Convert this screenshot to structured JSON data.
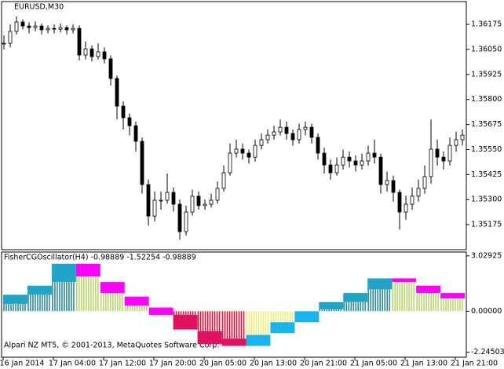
{
  "chart_data": [
    {
      "type": "candlestick",
      "title": "EURUSD,M30",
      "close": [
        1.36081,
        1.3614,
        1.36187,
        1.36167,
        1.36159,
        1.36167,
        1.36148,
        1.36155,
        1.36151,
        1.36159,
        1.36148,
        1.36155,
        1.36022,
        1.36053,
        1.36014,
        1.36038,
        1.36003,
        1.35905,
        1.35767,
        1.35709,
        1.35669,
        1.35591,
        1.35375,
        1.35218,
        1.35297,
        1.35297,
        1.35336,
        1.35277,
        1.3514,
        1.35238,
        1.35317,
        1.3527,
        1.35277,
        1.35297,
        1.35356,
        1.35434,
        1.35532,
        1.35552,
        1.35532,
        1.35512,
        1.35571,
        1.35599,
        1.35622,
        1.35638,
        1.35661,
        1.3563,
        1.35599,
        1.3565,
        1.35661,
        1.35611,
        1.35532,
        1.35473,
        1.35434,
        1.35473,
        1.35512,
        1.35493,
        1.35473,
        1.35493,
        1.35532,
        1.35512,
        1.35375,
        1.35395,
        1.35336,
        1.35238,
        1.35277,
        1.35317,
        1.35356,
        1.35415,
        1.35552,
        1.35512,
        1.35493,
        1.35571,
        1.35599,
        1.35622
      ],
      "high": [
        1.3612,
        1.36175,
        1.36215,
        1.362,
        1.36185,
        1.3619,
        1.3618,
        1.3617,
        1.36175,
        1.3618,
        1.3617,
        1.36175,
        1.3617,
        1.3609,
        1.3607,
        1.3608,
        1.3606,
        1.3602,
        1.3592,
        1.3579,
        1.3573,
        1.3569,
        1.3561,
        1.354,
        1.3534,
        1.3534,
        1.3543,
        1.3536,
        1.353,
        1.3527,
        1.3535,
        1.3534,
        1.353,
        1.3533,
        1.3539,
        1.3547,
        1.3558,
        1.356,
        1.3558,
        1.3555,
        1.356,
        1.3563,
        1.3565,
        1.3567,
        1.357,
        1.3569,
        1.3565,
        1.3568,
        1.3569,
        1.3568,
        1.3563,
        1.3556,
        1.355,
        1.3551,
        1.3555,
        1.3554,
        1.3552,
        1.3553,
        1.3557,
        1.356,
        1.3553,
        1.3544,
        1.3542,
        1.3535,
        1.3532,
        1.3536,
        1.354,
        1.3547,
        1.357,
        1.356,
        1.3554,
        1.3561,
        1.3564,
        1.3565
      ],
      "low": [
        1.3605,
        1.3606,
        1.36125,
        1.3615,
        1.3613,
        1.3614,
        1.36125,
        1.3613,
        1.3613,
        1.36135,
        1.36125,
        1.3613,
        1.35995,
        1.36,
        1.3599,
        1.36,
        1.3598,
        1.3587,
        1.357,
        1.3565,
        1.3562,
        1.3554,
        1.3533,
        1.3517,
        1.3519,
        1.3525,
        1.3528,
        1.3524,
        1.351,
        1.3512,
        1.3522,
        1.3525,
        1.3525,
        1.3526,
        1.3528,
        1.3534,
        1.3542,
        1.3551,
        1.355,
        1.3548,
        1.3549,
        1.3555,
        1.3558,
        1.356,
        1.3562,
        1.356,
        1.3557,
        1.3558,
        1.3562,
        1.3558,
        1.355,
        1.3543,
        1.354,
        1.3542,
        1.3545,
        1.3546,
        1.3544,
        1.3545,
        1.3547,
        1.3548,
        1.3533,
        1.3534,
        1.3529,
        1.3515,
        1.352,
        1.3525,
        1.3529,
        1.3533,
        1.3538,
        1.3547,
        1.3545,
        1.3547,
        1.3554,
        1.3557
      ],
      "ylim": [
        1.3505,
        1.36289
      ],
      "yticks": [
        {
          "value": 1.36175,
          "label": "1.36175"
        },
        {
          "value": 1.3605,
          "label": "1.36050"
        },
        {
          "value": 1.35925,
          "label": "1.35925"
        },
        {
          "value": 1.358,
          "label": "1.35800"
        },
        {
          "value": 1.35675,
          "label": "1.35675"
        },
        {
          "value": 1.3555,
          "label": "1.35550"
        },
        {
          "value": 1.35425,
          "label": "1.35425"
        },
        {
          "value": 1.353,
          "label": "1.35300"
        },
        {
          "value": 1.35175,
          "label": "1.35175"
        }
      ],
      "color": "#000000",
      "time_labels": [
        "16 Jan 2014",
        "17 Jan 04:00",
        "17 Jan 12:00",
        "17 Jan 20:00",
        "20 Jan 05:00",
        "20 Jan 13:00",
        "20 Jan 21:00",
        "21 Jan 05:00",
        "21 Jan 13:00",
        "21 Jan 21:00"
      ]
    },
    {
      "type": "step-band",
      "title": "FisherCGOscillator(H4) -0.98889 -1.52254 -0.98889",
      "series": [
        {
          "values": [
            0.9,
            1.4,
            2.6,
            2.6,
            1.6,
            0.8,
            0.2,
            -0.2,
            -1.1,
            -1.5,
            -1.3,
            -0.6,
            0.0,
            0.5,
            1.0,
            1.8,
            1.8,
            1.4,
            1.0
          ]
        },
        {
          "values": [
            0.4,
            0.9,
            1.6,
            1.9,
            1.0,
            0.3,
            -0.2,
            -1.0,
            -1.8,
            -1.9,
            -1.9,
            -1.2,
            -0.6,
            0.1,
            0.5,
            1.2,
            1.6,
            1.0,
            0.7
          ]
        }
      ],
      "band_colors": [
        "#1ea5c8",
        "#1ea5c8",
        "#1ea5c8",
        "#ff00ff",
        "#ff00ff",
        "#ff00ff",
        "#ff00ff",
        "#e0115f",
        "#e0115f",
        "#e0115f",
        "#19b4ee",
        "#19b4ee",
        "#19b4ee",
        "#1ea5c8",
        "#1ea5c8",
        "#1ea5c8",
        "#ff00ff",
        "#ff00ff",
        "#ff00ff"
      ],
      "hist_colors": [
        "#2b8c9c",
        "#2b8c9c",
        "#2b8c9c",
        "#b9d86c",
        "#b9d86c",
        "#b9d86c",
        "#dc143c",
        "#dc143c",
        "#dc143c",
        "#dc143c",
        "#eded7e",
        "#eded7e",
        "#eded7e",
        "#2b8c9c",
        "#2b8c9c",
        "#2b8c9c",
        "#b9d86c",
        "#b9d86c",
        "#b9d86c"
      ],
      "ylim": [
        -2.52,
        3.24
      ],
      "yticks": [
        3.02925,
        {
          "value": 0,
          "label": "0.00000"
        },
        -2.24503
      ],
      "footer": "Alpari NZ MT5, © 2001-2013, MetaQuotes Software Corp."
    }
  ]
}
